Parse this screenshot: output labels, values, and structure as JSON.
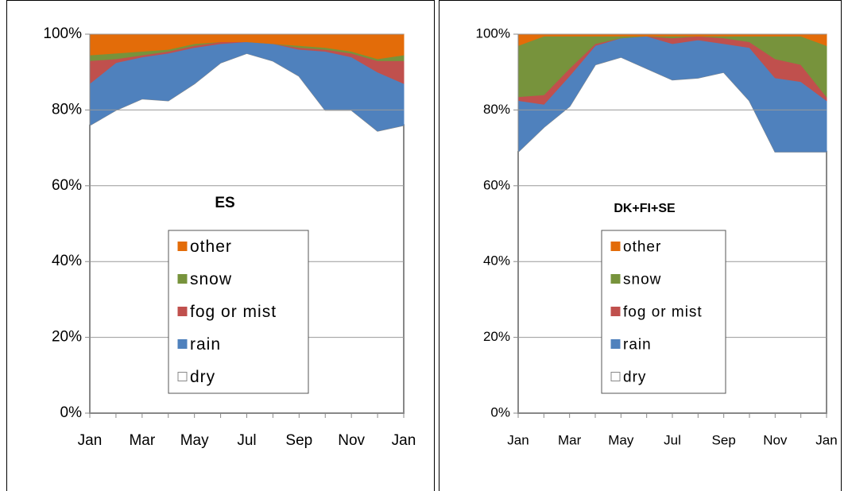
{
  "chart_data": [
    {
      "type": "area",
      "title": "ES",
      "categories": [
        "Jan",
        null,
        "Mar",
        null,
        "May",
        null,
        "Jul",
        null,
        "Sep",
        null,
        "Nov",
        null,
        "Jan"
      ],
      "ylim": [
        0,
        100
      ],
      "yticks": [
        {
          "value": 0,
          "label": "0%"
        },
        {
          "value": 20,
          "label": "20%"
        },
        {
          "value": 40,
          "label": "40%"
        },
        {
          "value": 60,
          "label": "60%"
        },
        {
          "value": 80,
          "label": "80%"
        },
        {
          "value": 100,
          "label": "100%"
        }
      ],
      "grid": true,
      "stacked": true,
      "series": [
        {
          "name": "dry",
          "color": "#ffffff",
          "values": [
            76,
            80,
            83,
            82.5,
            87,
            92.5,
            95,
            93,
            89,
            80,
            80,
            74.5,
            76
          ]
        },
        {
          "name": "rain",
          "color": "#4f81bd",
          "values": [
            11,
            12.5,
            11,
            12.5,
            9.5,
            5,
            3,
            4.5,
            7,
            15.5,
            14,
            15.5,
            11
          ]
        },
        {
          "name": "fog or mist",
          "color": "#c0504d",
          "values": [
            6,
            1,
            0.5,
            0.5,
            0.5,
            0.5,
            0,
            0,
            0.5,
            0.5,
            1,
            3,
            6
          ]
        },
        {
          "name": "snow",
          "color": "#77933c",
          "values": [
            1.5,
            1.5,
            1,
            0.5,
            0.5,
            0,
            0,
            0,
            0.5,
            0.5,
            0.5,
            0.5,
            1.5
          ]
        },
        {
          "name": "other",
          "color": "#e36c09",
          "values": [
            5.5,
            5,
            4.5,
            4,
            2.5,
            2,
            2,
            2.5,
            3,
            3.5,
            4.5,
            6.5,
            5.5
          ]
        }
      ]
    },
    {
      "type": "area",
      "title": "DK+FI+SE",
      "categories": [
        "Jan",
        null,
        "Mar",
        null,
        "May",
        null,
        "Jul",
        null,
        "Sep",
        null,
        "Nov",
        null,
        "Jan"
      ],
      "ylim": [
        0,
        100
      ],
      "yticks": [
        {
          "value": 0,
          "label": "0%"
        },
        {
          "value": 20,
          "label": "20%"
        },
        {
          "value": 40,
          "label": "40%"
        },
        {
          "value": 60,
          "label": "60%"
        },
        {
          "value": 80,
          "label": "80%"
        },
        {
          "value": 100,
          "label": "100%"
        }
      ],
      "grid": true,
      "stacked": true,
      "series": [
        {
          "name": "dry",
          "color": "#ffffff",
          "values": [
            69,
            75.5,
            81,
            92,
            94,
            91,
            88,
            88.5,
            90,
            82.5,
            69,
            69,
            69
          ]
        },
        {
          "name": "rain",
          "color": "#4f81bd",
          "values": [
            13.5,
            6,
            8,
            5,
            5,
            8.5,
            9.5,
            10,
            7.5,
            14,
            19.5,
            18.5,
            13.5
          ]
        },
        {
          "name": "fog or mist",
          "color": "#c0504d",
          "values": [
            1,
            2.5,
            2,
            0.5,
            0,
            0,
            1.5,
            1,
            1.5,
            1.5,
            5,
            4.5,
            1
          ]
        },
        {
          "name": "snow",
          "color": "#77933c",
          "values": [
            13.5,
            15.5,
            8.5,
            2,
            0.5,
            0,
            0.5,
            0,
            0.5,
            1.5,
            6,
            7.5,
            13.5
          ]
        },
        {
          "name": "other",
          "color": "#e36c09",
          "values": [
            3,
            0.5,
            0.5,
            0.5,
            0.5,
            0.5,
            0.5,
            0.5,
            0.5,
            0.5,
            0.5,
            0.5,
            3
          ]
        }
      ]
    }
  ]
}
